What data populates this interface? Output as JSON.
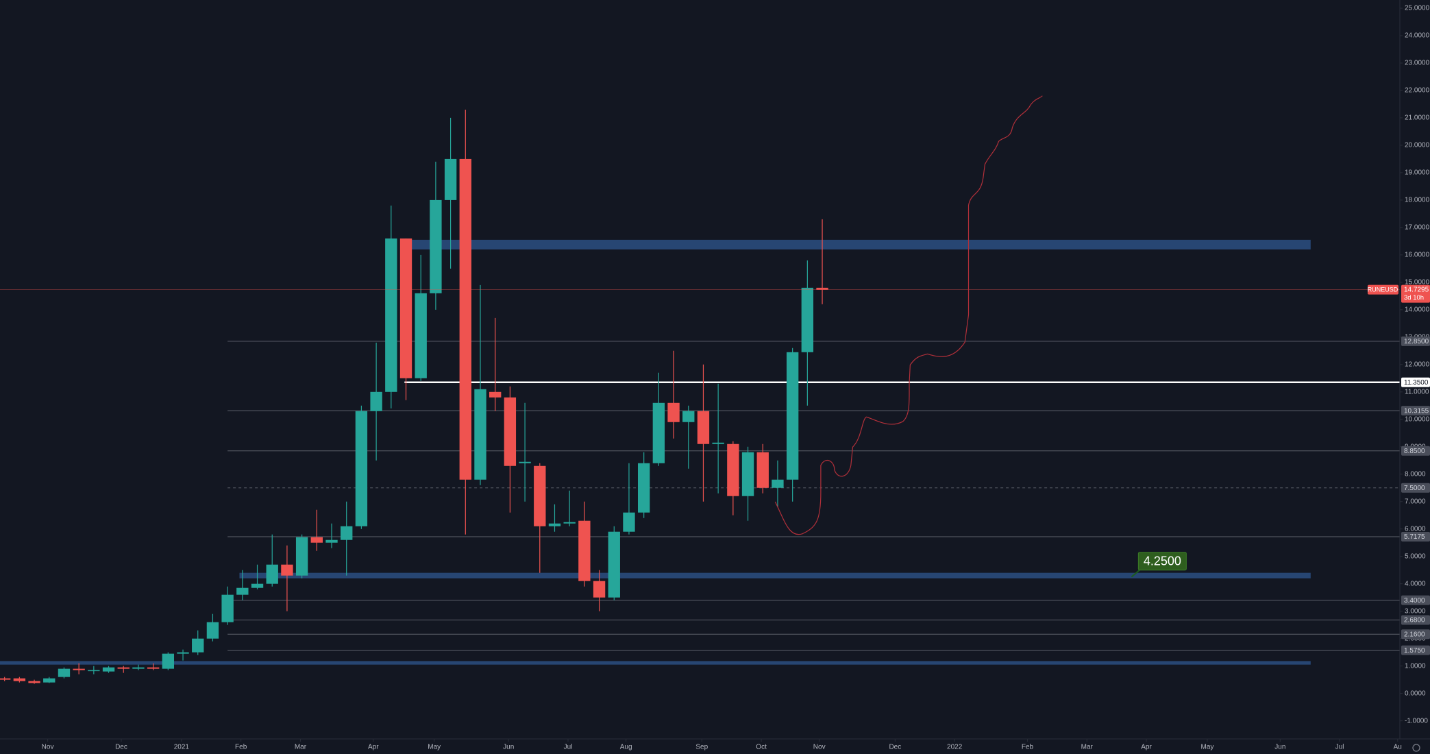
{
  "symbol": "RUNEUSD",
  "chart_data": {
    "type": "candlestick",
    "x": [
      0,
      1,
      2,
      3,
      4,
      5,
      6,
      7,
      8,
      9,
      10,
      11,
      12,
      13,
      14,
      15,
      16,
      17,
      18,
      19,
      20,
      21,
      22,
      23,
      24,
      25,
      26,
      27,
      28,
      29,
      30,
      31,
      32,
      33,
      34,
      35,
      36,
      37,
      38,
      39,
      40,
      41,
      42,
      43,
      44,
      45,
      46,
      47,
      48,
      49,
      50,
      51,
      52,
      53,
      54,
      55
    ],
    "open": [
      0.55,
      0.55,
      0.45,
      0.4,
      0.6,
      0.9,
      0.85,
      0.8,
      0.95,
      0.9,
      0.95,
      0.9,
      1.45,
      1.5,
      2.0,
      2.6,
      3.6,
      3.85,
      4.0,
      4.7,
      4.3,
      5.7,
      5.5,
      5.6,
      6.1,
      10.3,
      11.0,
      16.6,
      11.5,
      14.6,
      18.0,
      19.5,
      7.8,
      11.0,
      10.8,
      8.4,
      8.3,
      6.1,
      6.2,
      6.3,
      4.1,
      3.5,
      5.9,
      6.6,
      8.4,
      10.6,
      9.9,
      10.3,
      9.1,
      9.1,
      7.2,
      8.8,
      7.5,
      7.8,
      12.45,
      14.8
    ],
    "high": [
      0.6,
      0.6,
      0.5,
      0.6,
      0.95,
      1.1,
      1.0,
      1.0,
      1.0,
      1.05,
      1.1,
      1.5,
      1.6,
      2.3,
      2.9,
      3.9,
      4.5,
      4.7,
      5.8,
      5.4,
      5.8,
      6.7,
      6.2,
      7.0,
      10.5,
      12.8,
      17.8,
      16.6,
      16.0,
      19.4,
      21.0,
      21.3,
      14.9,
      13.7,
      11.2,
      10.6,
      8.4,
      6.9,
      7.4,
      7.0,
      4.5,
      6.1,
      8.4,
      8.8,
      11.7,
      12.5,
      10.5,
      12.0,
      11.3,
      9.2,
      9.0,
      9.1,
      8.5,
      12.6,
      15.8,
      17.3
    ],
    "low": [
      0.45,
      0.4,
      0.35,
      0.38,
      0.55,
      0.7,
      0.7,
      0.75,
      0.75,
      0.85,
      0.85,
      0.85,
      1.2,
      1.4,
      1.9,
      2.5,
      3.4,
      3.8,
      3.9,
      3.0,
      4.2,
      5.2,
      5.3,
      4.3,
      6.0,
      8.5,
      10.4,
      10.7,
      11.4,
      14.0,
      15.5,
      5.8,
      7.6,
      10.3,
      6.6,
      7.0,
      4.4,
      5.9,
      6.1,
      3.9,
      3.0,
      3.4,
      5.8,
      6.4,
      8.3,
      9.3,
      8.2,
      7.0,
      7.3,
      6.5,
      6.3,
      7.3,
      6.8,
      7.0,
      10.5,
      14.2
    ],
    "close": [
      0.5,
      0.45,
      0.38,
      0.55,
      0.9,
      0.85,
      0.85,
      0.95,
      0.9,
      0.95,
      0.9,
      1.45,
      1.5,
      2.0,
      2.6,
      3.6,
      3.85,
      4.0,
      4.7,
      4.3,
      5.7,
      5.5,
      5.6,
      6.1,
      10.3,
      11.0,
      16.6,
      11.5,
      14.6,
      18.0,
      19.5,
      7.8,
      11.1,
      10.8,
      8.3,
      8.45,
      6.1,
      6.2,
      6.25,
      4.1,
      3.5,
      5.9,
      6.6,
      8.4,
      10.6,
      9.9,
      10.3,
      9.1,
      9.15,
      7.2,
      8.8,
      7.5,
      7.8,
      12.45,
      14.8,
      14.73
    ],
    "up_color": "#26a69a",
    "down_color": "#ef5350",
    "xlim": [
      -0.307,
      93.85
    ],
    "xticks": [
      {
        "value": 2.9,
        "label": "Nov"
      },
      {
        "value": 7.85,
        "label": "Dec"
      },
      {
        "value": 11.9,
        "label": "2021"
      },
      {
        "value": 15.9,
        "label": "Feb"
      },
      {
        "value": 19.9,
        "label": "Mar"
      },
      {
        "value": 24.8,
        "label": "Apr"
      },
      {
        "value": 28.9,
        "label": "May"
      },
      {
        "value": 33.9,
        "label": "Jun"
      },
      {
        "value": 37.9,
        "label": "Jul"
      },
      {
        "value": 41.8,
        "label": "Aug"
      },
      {
        "value": 46.9,
        "label": "Sep"
      },
      {
        "value": 50.9,
        "label": "Oct"
      },
      {
        "value": 54.8,
        "label": "Nov"
      },
      {
        "value": 59.9,
        "label": "Dec"
      },
      {
        "value": 63.9,
        "label": "2022"
      },
      {
        "value": 68.8,
        "label": "Feb"
      },
      {
        "value": 72.8,
        "label": "Mar"
      },
      {
        "value": 76.8,
        "label": "Apr"
      },
      {
        "value": 80.9,
        "label": "May"
      },
      {
        "value": 85.8,
        "label": "Jun"
      },
      {
        "value": 89.8,
        "label": "Jul"
      },
      {
        "value": 93.7,
        "label": "Au"
      }
    ],
    "ylim": [
      -1.66,
      25.3
    ],
    "yticks": [
      {
        "value": -1,
        "label": "-1.0000"
      },
      {
        "value": 0,
        "label": "0.0000"
      },
      {
        "value": 1,
        "label": "1.0000"
      },
      {
        "value": 2,
        "label": "2.0000"
      },
      {
        "value": 3,
        "label": "3.0000"
      },
      {
        "value": 4,
        "label": "4.0000"
      },
      {
        "value": 5,
        "label": "5.0000"
      },
      {
        "value": 6,
        "label": "6.0000"
      },
      {
        "value": 7,
        "label": "7.0000"
      },
      {
        "value": 8,
        "label": "8.0000"
      },
      {
        "value": 9,
        "label": "9.0000"
      },
      {
        "value": 10,
        "label": "10.0000"
      },
      {
        "value": 11,
        "label": "11.0000"
      },
      {
        "value": 12,
        "label": "12.0000"
      },
      {
        "value": 13,
        "label": "13.0000"
      },
      {
        "value": 14,
        "label": "14.0000"
      },
      {
        "value": 15,
        "label": "15.0000"
      },
      {
        "value": 16,
        "label": "16.0000"
      },
      {
        "value": 17,
        "label": "17.0000"
      },
      {
        "value": 18,
        "label": "18.0000"
      },
      {
        "value": 19,
        "label": "19.0000"
      },
      {
        "value": 20,
        "label": "20.0000"
      },
      {
        "value": 21,
        "label": "21.0000"
      },
      {
        "value": 22,
        "label": "22.0000"
      },
      {
        "value": 23,
        "label": "23.0000"
      },
      {
        "value": 24,
        "label": "24.0000"
      },
      {
        "value": 25,
        "label": "25.0000"
      }
    ],
    "levels": [
      {
        "value": 12.85,
        "label": "12.8500"
      },
      {
        "value": 11.35,
        "label": "11.3500"
      },
      {
        "value": 10.3155,
        "label": "10.3155"
      },
      {
        "value": 8.85,
        "label": "8.8500"
      },
      {
        "value": 7.5,
        "label": "7.5000"
      },
      {
        "value": 5.7175,
        "label": "5.7175"
      },
      {
        "value": 3.4,
        "label": "3.4000"
      },
      {
        "value": 2.68,
        "label": "2.6800"
      },
      {
        "value": 2.16,
        "label": "2.1600"
      },
      {
        "value": 1.575,
        "label": "1.5750"
      }
    ],
    "current": {
      "value": 14.7295,
      "label": "14.7295",
      "countdown": "3d 10h"
    },
    "zones": [
      {
        "low": 16.2,
        "high": 16.55
      },
      {
        "low": 4.2,
        "high": 4.4
      },
      {
        "low": 1.05,
        "high": 1.18
      }
    ],
    "annotations": [
      {
        "value": 4.25,
        "label": "4.2500"
      }
    ],
    "grid": false
  }
}
